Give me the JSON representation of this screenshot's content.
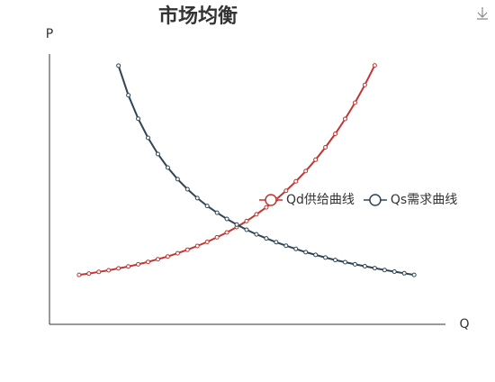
{
  "chart_data": {
    "type": "line",
    "title": "市场均衡",
    "x_label": "Q",
    "y_label": "P",
    "xlim": [
      0,
      100
    ],
    "ylim": [
      0,
      100
    ],
    "grid": false,
    "legend": "right",
    "series": [
      {
        "name": "Qd供给曲线",
        "color": "#c23531",
        "x": [
          7.5,
          10,
          12.5,
          15,
          17.5,
          20,
          22.5,
          25,
          27.5,
          30,
          32.5,
          35,
          37.5,
          40,
          42.5,
          45,
          47.5,
          50,
          52.5,
          55,
          57.5,
          60,
          62.5,
          65,
          67.5,
          70,
          72.5,
          75,
          77.5,
          80,
          82.5
        ],
        "values": [
          18.3,
          18.8,
          19.4,
          20.0,
          20.7,
          21.4,
          22.2,
          23.1,
          24.1,
          25.1,
          26.3,
          27.6,
          29.0,
          30.5,
          32.2,
          34.0,
          36.0,
          38.2,
          40.7,
          43.3,
          46.2,
          49.4,
          52.9,
          56.7,
          60.9,
          65.5,
          70.5,
          76.0,
          82.0,
          88.6,
          95.8
        ]
      },
      {
        "name": "Qs需求曲线",
        "color": "#2f4554",
        "x": [
          17.5,
          20,
          22.5,
          25,
          27.5,
          30,
          32.5,
          35,
          37.5,
          40,
          42.5,
          45,
          47.5,
          50,
          52.5,
          55,
          57.5,
          60,
          62.5,
          65,
          67.5,
          70,
          72.5,
          75,
          77.5,
          80,
          82.5,
          85,
          87.5,
          90,
          92.5
        ],
        "values": [
          95.7,
          84.8,
          76.1,
          69.0,
          63.0,
          58.0,
          53.7,
          50.0,
          46.7,
          43.8,
          41.3,
          39.0,
          36.9,
          35.0,
          33.3,
          31.8,
          30.4,
          29.1,
          27.9,
          26.7,
          25.7,
          24.7,
          23.8,
          23.0,
          22.2,
          21.5,
          20.8,
          20.1,
          19.5,
          18.9,
          18.3
        ]
      }
    ]
  }
}
